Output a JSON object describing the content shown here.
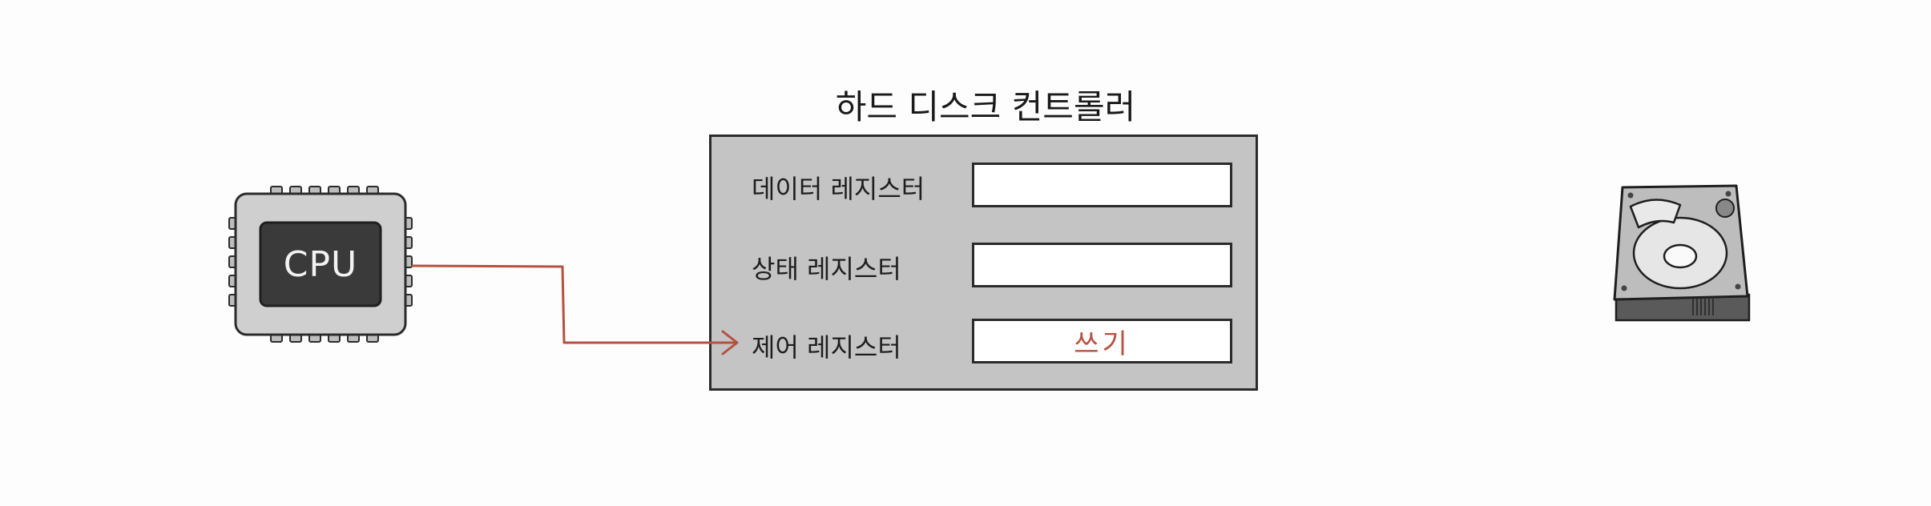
{
  "cpu": {
    "label": "CPU"
  },
  "controller": {
    "title": "하드 디스크 컨트롤러",
    "registers": [
      {
        "label": "데이터 레지스터",
        "value": ""
      },
      {
        "label": "상태 레지스터",
        "value": ""
      },
      {
        "label": "제어 레지스터",
        "value": "쓰기"
      }
    ]
  },
  "colors": {
    "arrow": "#b5513f",
    "panel": "#c4c4c4",
    "chip_body": "#cfcfcf",
    "chip_core": "#3a3a3a",
    "disk_body": "#bdbdbd"
  }
}
